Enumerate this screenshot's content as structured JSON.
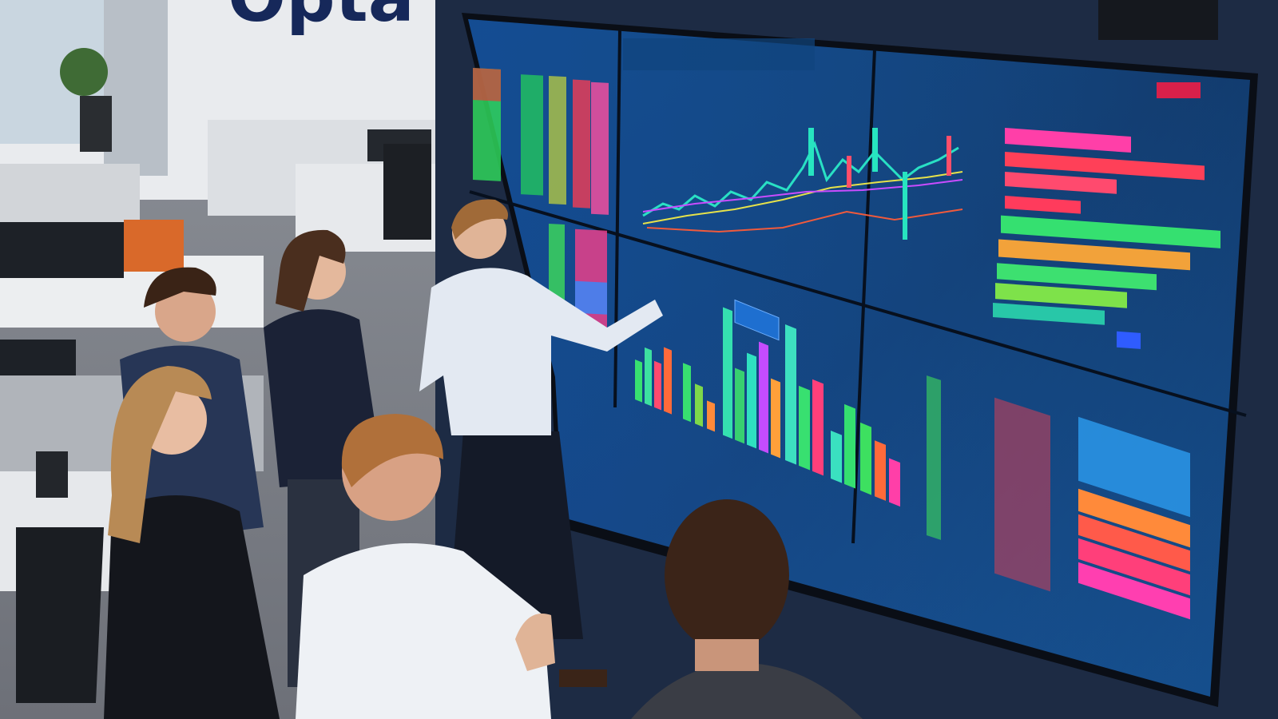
{
  "wall_sign": "Opta"
}
